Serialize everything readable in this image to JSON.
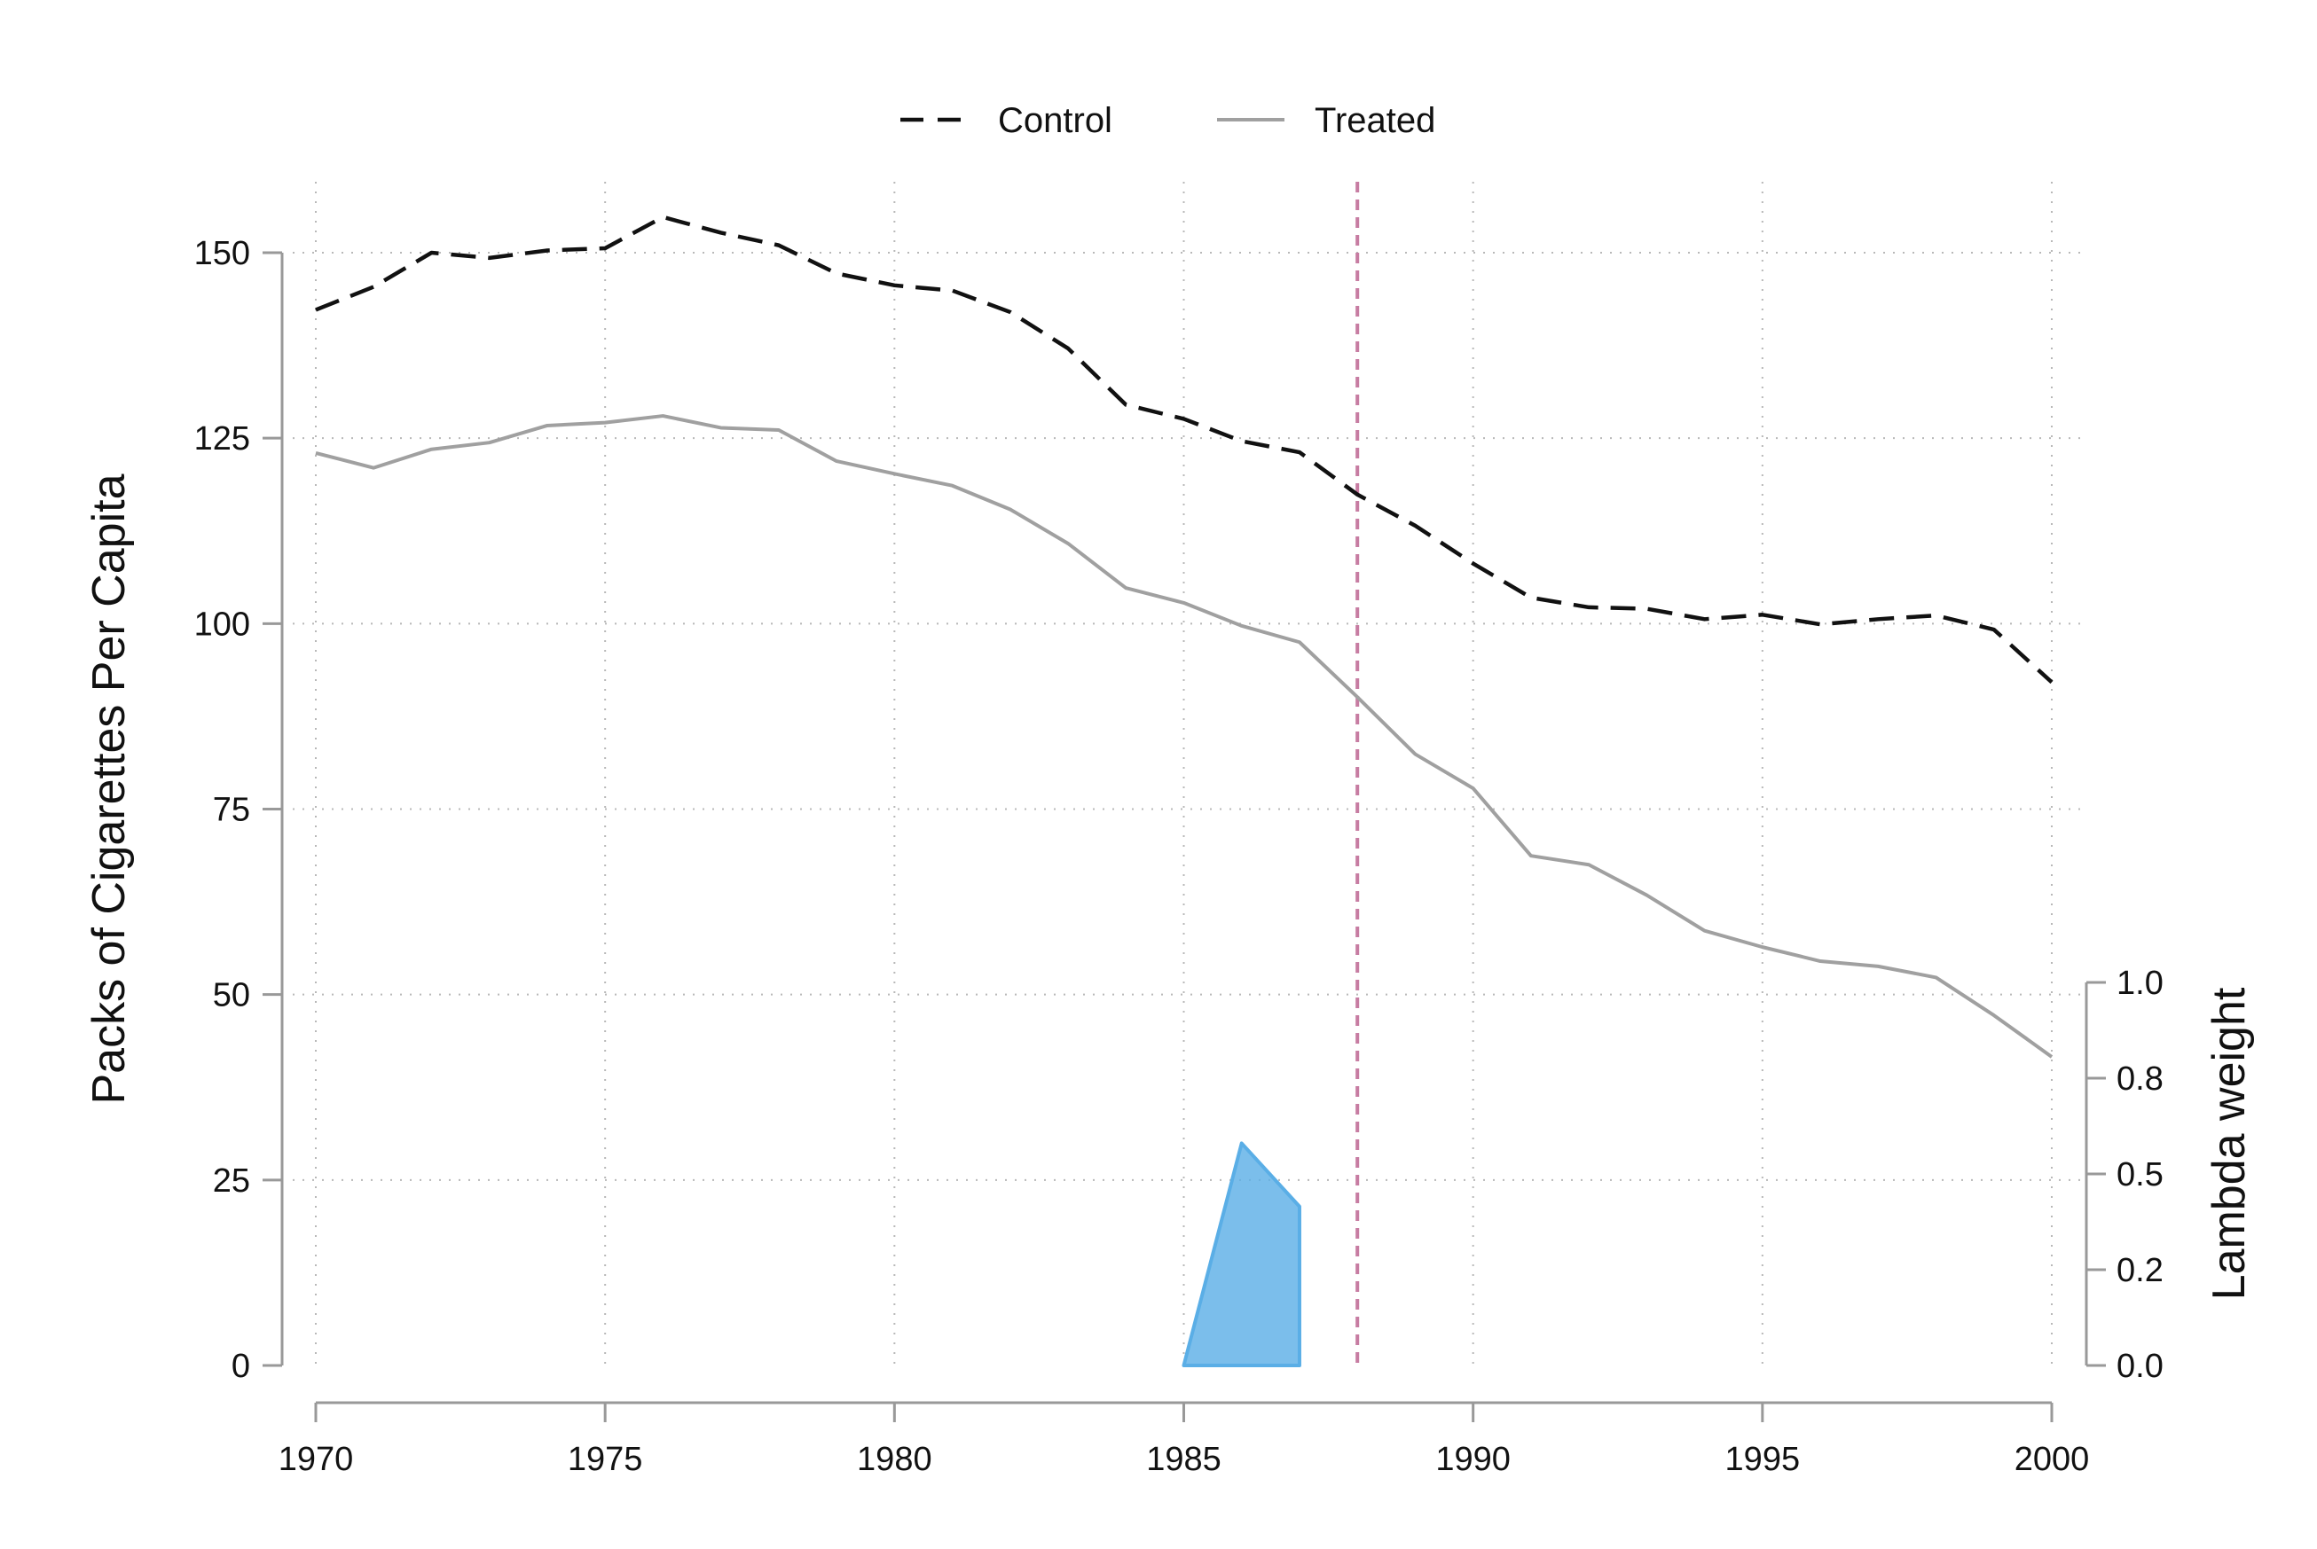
{
  "chart_data": {
    "type": "line",
    "ylabel": "Packs of Cigarettes Per Capita",
    "y2label": "Lambda weight",
    "xlim": [
      1970,
      2000
    ],
    "ylim": [
      0,
      150
    ],
    "y2lim": [
      0.0,
      1.0
    ],
    "xticks": [
      1970,
      1975,
      1980,
      1985,
      1990,
      1995,
      2000
    ],
    "yticks": [
      0,
      25,
      50,
      75,
      100,
      125,
      150
    ],
    "y2ticks": [
      0.0,
      0.25,
      0.5,
      0.75,
      1.0
    ],
    "y2tick_labels": [
      "0.0",
      "0.2",
      "0.5",
      "0.8",
      "1.0"
    ],
    "grid": "dotted",
    "legend_position": "top-center",
    "treatment_year": 1988,
    "series": [
      {
        "name": "Control",
        "style": "dashed",
        "color": "#111111",
        "x": [
          1970,
          1971,
          1972,
          1973,
          1974,
          1975,
          1976,
          1977,
          1978,
          1979,
          1980,
          1981,
          1982,
          1983,
          1984,
          1985,
          1986,
          1987,
          1988,
          1989,
          1990,
          1991,
          1992,
          1993,
          1994,
          1995,
          1996,
          1997,
          1998,
          1999,
          2000
        ],
        "values": [
          142.3,
          145.4,
          150.0,
          149.3,
          150.3,
          150.6,
          154.8,
          152.7,
          151.0,
          147.2,
          145.6,
          144.9,
          142.0,
          137.1,
          129.5,
          127.6,
          124.6,
          123.1,
          117.4,
          113.2,
          108.1,
          103.5,
          102.2,
          102.0,
          100.6,
          101.2,
          99.9,
          100.6,
          101.1,
          99.2,
          92.1
        ]
      },
      {
        "name": "Treated",
        "style": "solid",
        "color": "#a0a0a0",
        "x": [
          1970,
          1971,
          1972,
          1973,
          1974,
          1975,
          1976,
          1977,
          1978,
          1979,
          1980,
          1981,
          1982,
          1983,
          1984,
          1985,
          1986,
          1987,
          1988,
          1989,
          1990,
          1991,
          1992,
          1993,
          1994,
          1995,
          1996,
          1997,
          1998,
          1999,
          2000
        ],
        "values": [
          123.0,
          121.0,
          123.5,
          124.4,
          126.7,
          127.1,
          128.0,
          126.4,
          126.1,
          121.9,
          120.2,
          118.6,
          115.4,
          110.8,
          104.8,
          102.8,
          99.7,
          97.5,
          90.1,
          82.4,
          77.8,
          68.7,
          67.5,
          63.4,
          58.6,
          56.4,
          54.5,
          53.8,
          52.3,
          47.2,
          41.6
        ]
      }
    ],
    "lambda_weights": {
      "x": [
        1985,
        1986,
        1987
      ],
      "values": [
        0.0,
        0.58,
        0.415
      ],
      "color": "#5aaee6"
    },
    "treatment_line_color": "#c77ca2"
  }
}
